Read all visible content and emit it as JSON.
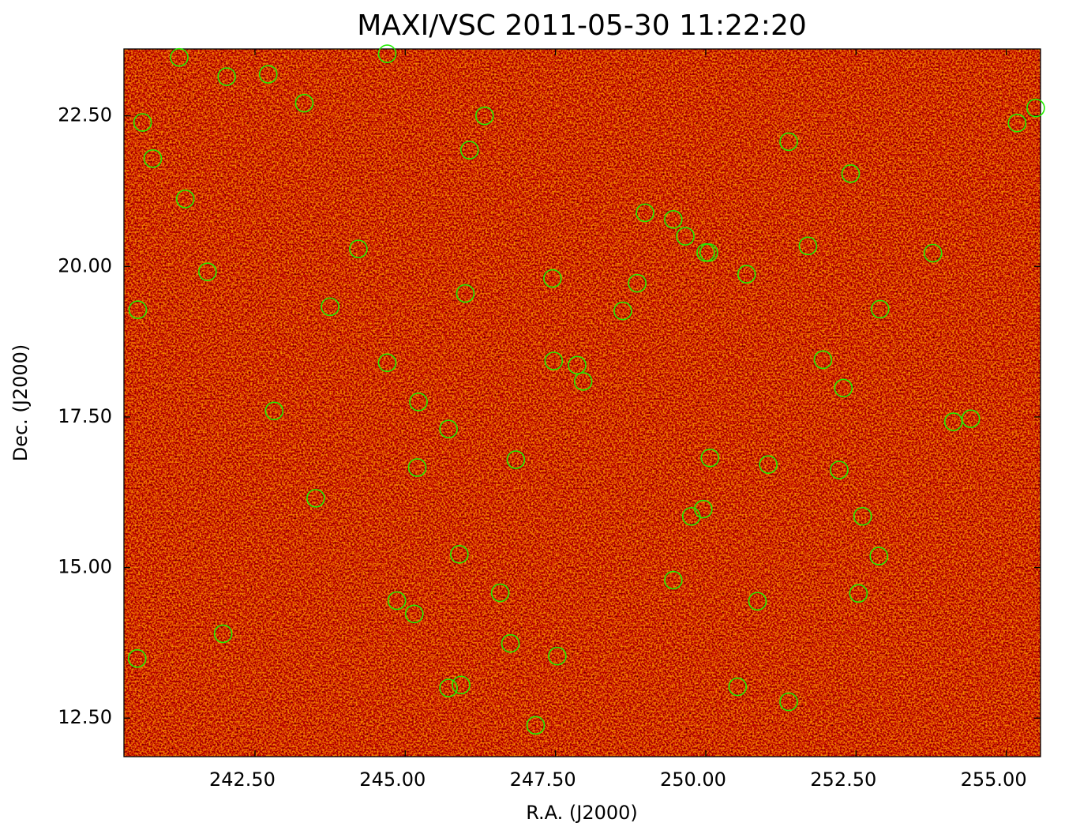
{
  "chart_data": {
    "type": "scatter",
    "title": "MAXI/VSC 2011-05-30 11:22:20",
    "x_label": "R.A. (J2000)",
    "y_label": "Dec. (J2000)",
    "color": "#22ee00",
    "xlim": [
      240.32,
      255.57
    ],
    "ylim": [
      11.86,
      23.61
    ],
    "xticks": [
      {
        "value": 242.5,
        "label": "242.50"
      },
      {
        "value": 245,
        "label": "245.00"
      },
      {
        "value": 247.5,
        "label": "247.50"
      },
      {
        "value": 250,
        "label": "250.00"
      },
      {
        "value": 252.5,
        "label": "252.50"
      },
      {
        "value": 255,
        "label": "255.00"
      }
    ],
    "yticks": [
      {
        "value": 12.5,
        "label": "12.50"
      },
      {
        "value": 15,
        "label": "15.00"
      },
      {
        "value": 17.5,
        "label": "17.50"
      },
      {
        "value": 20,
        "label": "20.00"
      },
      {
        "value": 22.5,
        "label": "22.50"
      }
    ],
    "x": [
      241.24,
      244.7,
      242.03,
      242.72,
      243.32,
      240.63,
      246.32,
      240.8,
      246.07,
      251.38,
      252.41,
      241.34,
      255.49,
      255.18,
      248.99,
      249.46,
      249.66,
      244.22,
      241.71,
      250.0,
      250.05,
      251.7,
      253.78,
      250.68,
      247.45,
      246.0,
      248.86,
      243.75,
      240.55,
      248.62,
      252.9,
      244.7,
      247.47,
      247.86,
      247.96,
      251.95,
      252.29,
      242.82,
      245.22,
      245.72,
      254.12,
      254.41,
      246.84,
      250.07,
      251.04,
      245.2,
      252.22,
      243.51,
      249.96,
      249.76,
      252.61,
      245.9,
      252.88,
      249.46,
      246.58,
      244.86,
      250.86,
      252.54,
      245.15,
      241.97,
      240.54,
      246.75,
      247.53,
      245.72,
      245.93,
      250.53,
      251.38,
      247.17
    ],
    "y": [
      23.47,
      23.53,
      23.15,
      23.19,
      22.71,
      22.39,
      22.5,
      21.79,
      21.93,
      22.07,
      21.54,
      21.12,
      22.63,
      22.38,
      20.89,
      20.78,
      20.5,
      20.29,
      19.91,
      20.23,
      20.23,
      20.34,
      20.22,
      19.87,
      19.8,
      19.55,
      19.72,
      19.33,
      19.28,
      19.26,
      19.29,
      18.4,
      18.43,
      18.36,
      18.09,
      18.45,
      17.98,
      17.6,
      17.75,
      17.3,
      17.42,
      17.47,
      16.79,
      16.82,
      16.71,
      16.66,
      16.62,
      16.15,
      15.97,
      15.85,
      15.85,
      15.22,
      15.19,
      14.79,
      14.58,
      14.45,
      14.44,
      14.57,
      14.23,
      13.9,
      13.49,
      13.74,
      13.53,
      13.0,
      13.05,
      13.02,
      12.77,
      12.38
    ]
  }
}
